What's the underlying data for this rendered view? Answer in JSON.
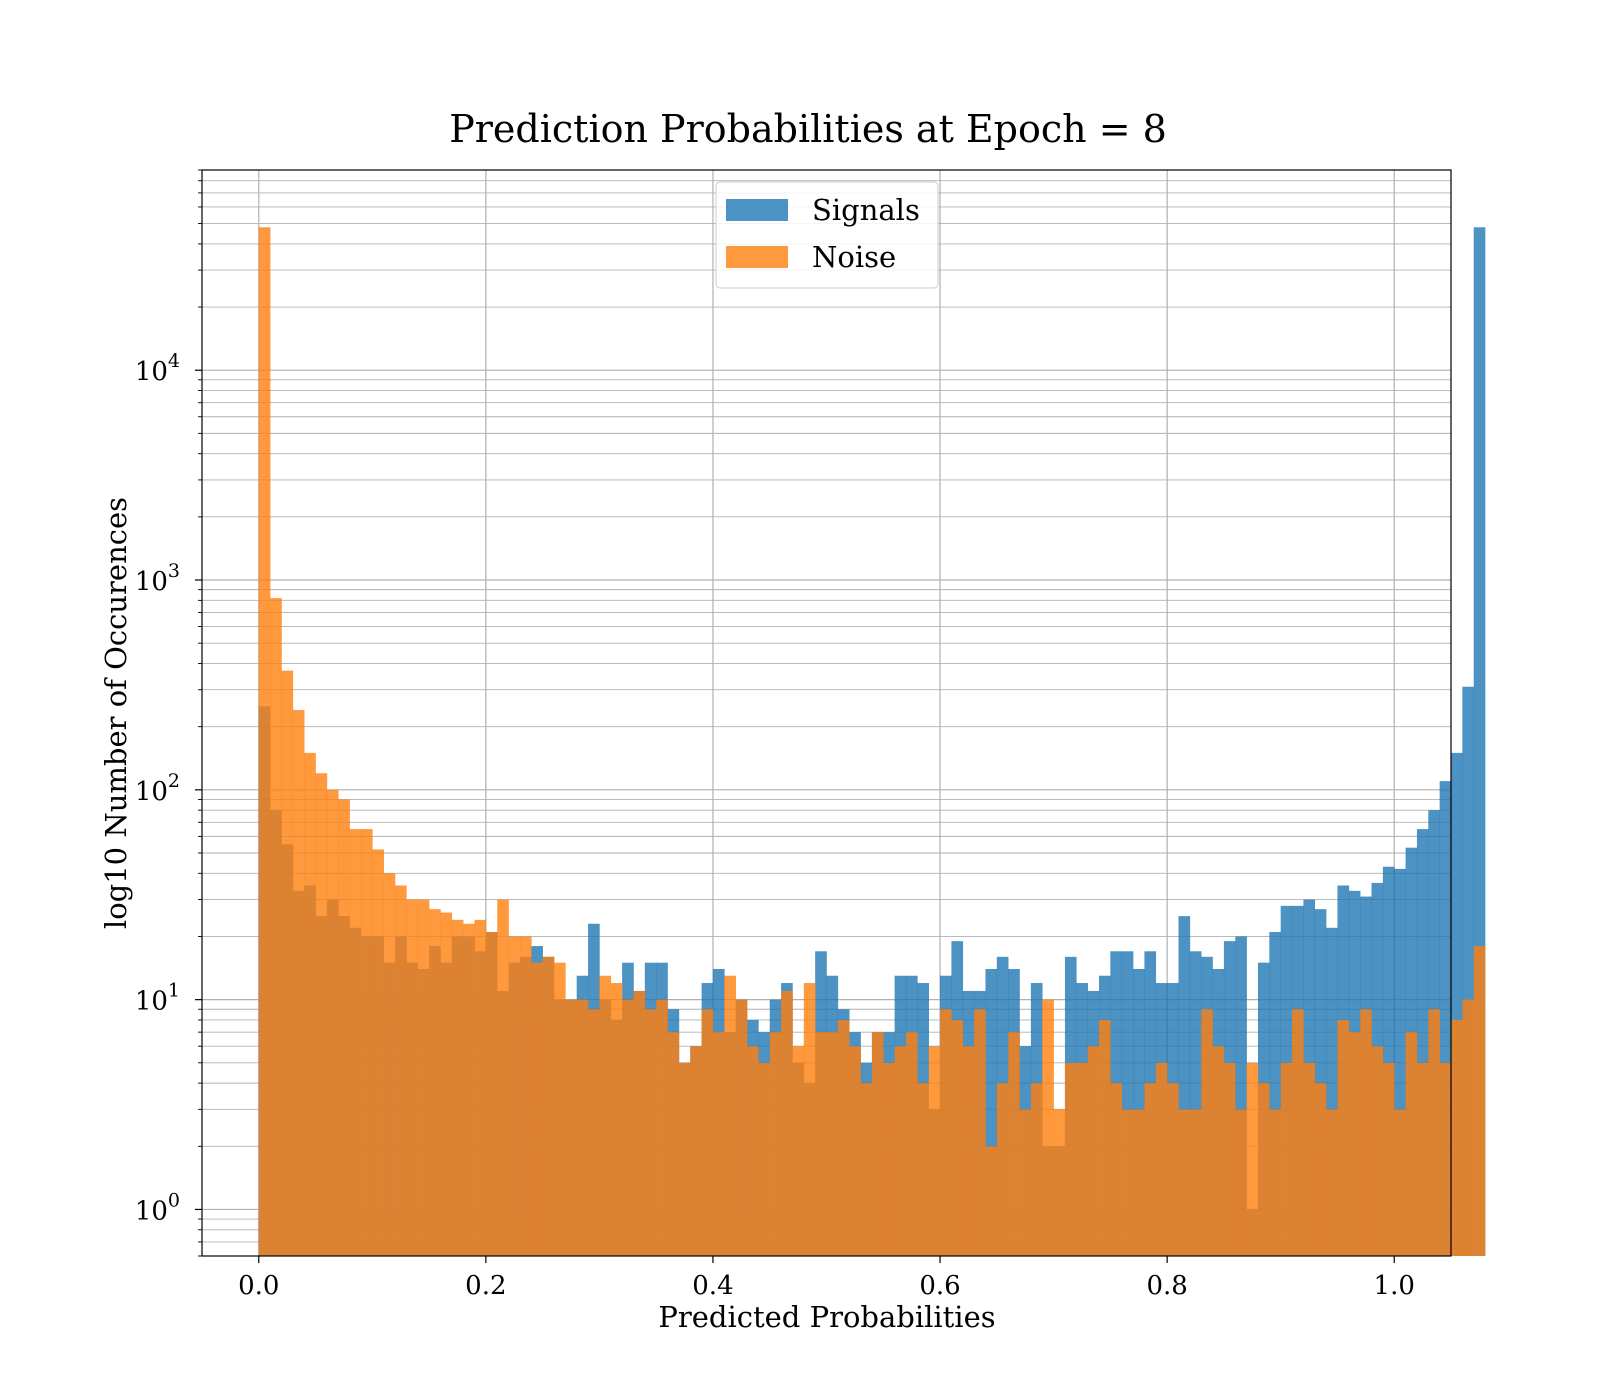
{
  "chart_data": {
    "type": "bar",
    "title": "Prediction Probabilities at Epoch = 8",
    "xlabel": "Predicted Probabilities",
    "ylabel": "log10 Number of Occurences",
    "xlim": [
      -0.05,
      1.05
    ],
    "ylim": [
      0.6,
      90000
    ],
    "yscale": "log",
    "grid": true,
    "legend_position": "top-center",
    "x_ticks": [
      "0.0",
      "0.2",
      "0.4",
      "0.6",
      "0.8",
      "1.0"
    ],
    "x_tick_values": [
      0,
      0.2,
      0.4,
      0.6,
      0.8,
      1.0
    ],
    "y_ticks": [
      {
        "base": "10",
        "exp": "0",
        "value": 1
      },
      {
        "base": "10",
        "exp": "1",
        "value": 10
      },
      {
        "base": "10",
        "exp": "2",
        "value": 100
      },
      {
        "base": "10",
        "exp": "3",
        "value": 1000
      },
      {
        "base": "10",
        "exp": "4",
        "value": 10000
      }
    ],
    "bin_start": 0.0,
    "bin_width": 0.01,
    "series": [
      {
        "name": "Signals",
        "color": "#1f77b4",
        "values": [
          250,
          80,
          55,
          33,
          35,
          25,
          30,
          25,
          22,
          20,
          20,
          15,
          20,
          15,
          14,
          18,
          15,
          20,
          20,
          17,
          21,
          11,
          15,
          16,
          18,
          16,
          10,
          10,
          13,
          23,
          10,
          8,
          15,
          11,
          15,
          15,
          9,
          5,
          6,
          12,
          14,
          7,
          10,
          8,
          7,
          10,
          12,
          5,
          4,
          17,
          13,
          9,
          7,
          5,
          7,
          7,
          13,
          13,
          12,
          3,
          13,
          19,
          11,
          11,
          14,
          16,
          14,
          6,
          12,
          2,
          2,
          16,
          12,
          11,
          13,
          17,
          17,
          14,
          17,
          12,
          12,
          25,
          17,
          16,
          14,
          19,
          20,
          1,
          15,
          21,
          28,
          28,
          30,
          27,
          22,
          35,
          33,
          31,
          36,
          43,
          42,
          53,
          65,
          80,
          110,
          150,
          310,
          48000
        ]
      },
      {
        "name": "Noise",
        "color": "#ff7f0e",
        "values": [
          48000,
          820,
          370,
          240,
          150,
          120,
          100,
          90,
          65,
          65,
          52,
          40,
          35,
          30,
          30,
          27,
          26,
          24,
          23,
          24,
          21,
          30,
          20,
          20,
          15,
          16,
          15,
          10,
          10,
          9,
          13,
          12,
          10,
          11,
          9,
          10,
          7,
          5,
          6,
          9,
          7,
          13,
          10,
          6,
          5,
          7,
          11,
          6,
          12,
          7,
          7,
          8,
          6,
          4,
          7,
          5,
          6,
          7,
          4,
          6,
          9,
          8,
          6,
          9,
          2,
          4,
          7,
          3,
          4,
          10,
          3,
          5,
          5,
          6,
          8,
          4,
          3,
          3,
          4,
          5,
          4,
          3,
          3,
          9,
          6,
          5,
          3,
          5,
          4,
          3,
          5,
          9,
          5,
          4,
          3,
          8,
          7,
          9,
          6,
          5,
          3,
          7,
          5,
          9,
          5,
          8,
          10,
          18
        ]
      }
    ],
    "legend": [
      {
        "label": "Signals",
        "color": "#1f77b4"
      },
      {
        "label": "Noise",
        "color": "#ff7f0e"
      }
    ]
  }
}
